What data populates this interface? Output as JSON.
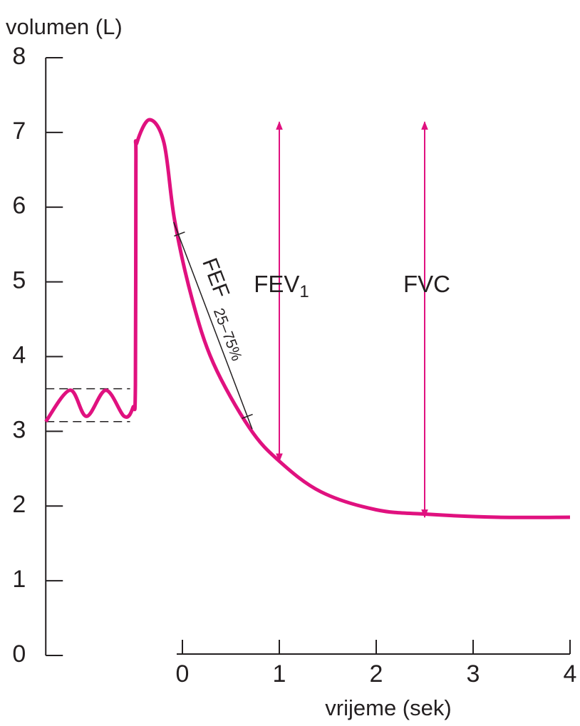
{
  "chart_data": {
    "type": "line",
    "y_label": "volumen (L)",
    "x_label": "vrijeme (sek)",
    "xlim": [
      -1.41,
      4
    ],
    "xticks": [
      0,
      1,
      2,
      3,
      4
    ],
    "ylim": [
      0,
      8
    ],
    "yticks": [
      0,
      1,
      2,
      3,
      4,
      5,
      6,
      7,
      8
    ],
    "x": [
      -1.41,
      -1.16,
      -0.99,
      -0.79,
      -0.6,
      -0.51,
      -0.485,
      -0.48,
      -0.47,
      -0.34,
      -0.19,
      -0.08,
      0.1,
      0.32,
      0.69,
      1.0,
      1.43,
      2.0,
      2.53,
      3.26,
      4.0
    ],
    "series": [
      {
        "color": "#e0117f",
        "values": [
          3.13,
          3.55,
          3.2,
          3.55,
          3.2,
          3.32,
          3.62,
          6.58,
          6.86,
          7.17,
          6.86,
          5.82,
          4.77,
          3.91,
          3.05,
          2.6,
          2.19,
          1.95,
          1.89,
          1.85,
          1.85
        ]
      }
    ],
    "reference_lines": [
      {
        "y": 3.57,
        "x": [
          -1.41,
          -0.54
        ]
      },
      {
        "y": 3.13,
        "x": [
          -1.41,
          -0.54
        ]
      }
    ],
    "slope_line": {
      "label": "FEF",
      "subscript": "25–75%",
      "x": [
        -0.09,
        0.72
      ],
      "y": [
        5.8,
        3.03
      ]
    },
    "arrows": [
      {
        "label": "FEV",
        "subscript": "1",
        "x": 1,
        "y": [
          7.14,
          2.6
        ]
      },
      {
        "label": "FVC",
        "x": 2.5,
        "y": [
          7.14,
          1.85
        ]
      }
    ]
  }
}
